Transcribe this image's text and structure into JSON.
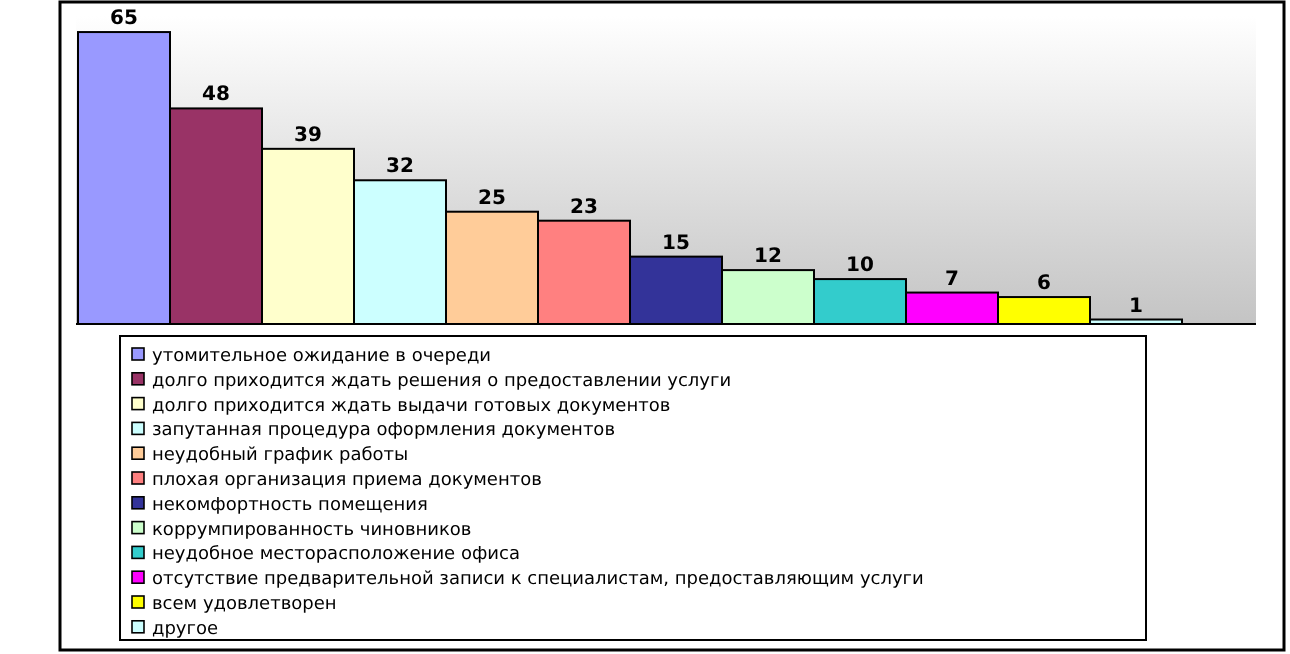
{
  "chart_data": {
    "type": "bar",
    "categories": [
      null
    ],
    "data_labels": true,
    "legend": "bottom",
    "series": [
      {
        "name": "утомительное ожидание в очереди",
        "color": "#9999ff",
        "values": [
          65
        ]
      },
      {
        "name": "долго приходится ждать решения о предоставлении услуги",
        "color": "#993366",
        "values": [
          48
        ]
      },
      {
        "name": "долго приходится ждать выдачи готовых документов",
        "color": "#ffffcc",
        "values": [
          39
        ]
      },
      {
        "name": "запутанная процедура оформления документов",
        "color": "#ccffff",
        "values": [
          32
        ]
      },
      {
        "name": "неудобный график работы",
        "color": "#ffcc99",
        "values": [
          25
        ]
      },
      {
        "name": "плохая организация приема документов",
        "color": "#ff8080",
        "values": [
          23
        ]
      },
      {
        "name": "некомфортность помещения",
        "color": "#333399",
        "values": [
          15
        ]
      },
      {
        "name": "коррумпированность чиновников",
        "color": "#ccffcc",
        "values": [
          12
        ]
      },
      {
        "name": "неудобное месторасположение офиса",
        "color": "#33cccc",
        "values": [
          10
        ]
      },
      {
        "name": "отсутствие предварительной записи к специалистам, предоставляющим услуги",
        "color": "#ff00ff",
        "values": [
          7
        ]
      },
      {
        "name": "всем удовлетворен",
        "color": "#ffff00",
        "values": [
          6
        ]
      },
      {
        "name": "другое",
        "color": "#ccffff",
        "values": [
          1
        ]
      }
    ]
  }
}
